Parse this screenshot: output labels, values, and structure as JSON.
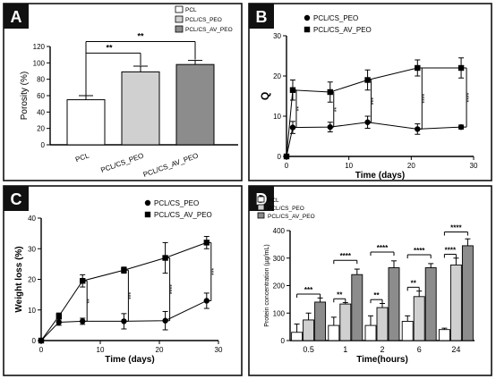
{
  "chart_data": [
    {
      "panel": "A",
      "type": "bar",
      "ylabel": "Porosity (%)",
      "ylim": [
        0,
        120
      ],
      "yticks": [
        0,
        20,
        40,
        60,
        80,
        100,
        120
      ],
      "categories": [
        "PCL",
        "PCL/CS_PEO",
        "PCL/CS_AV_PEO"
      ],
      "values": [
        55,
        89,
        98
      ],
      "errors": [
        5,
        7,
        5
      ],
      "legend": [
        "PCL",
        "PCL/CS_PEO",
        "PCL/CS_AV_PEO"
      ],
      "legend_position": "top-right",
      "colors": [
        "#ffffff",
        "#d0d0d0",
        "#8c8c8c"
      ],
      "significance": [
        {
          "from": 0,
          "to": 1,
          "label": "**"
        },
        {
          "from": 0,
          "to": 2,
          "label": "**"
        }
      ]
    },
    {
      "panel": "B",
      "type": "line",
      "ylabel": "Q",
      "xlabel": "Time (days)",
      "xlim": [
        0,
        30
      ],
      "ylim": [
        0,
        30
      ],
      "xticks": [
        0,
        10,
        20,
        30
      ],
      "yticks": [
        0,
        10,
        20,
        30
      ],
      "legend_position": "top-right",
      "series": [
        {
          "name": "PCL/CS_PEO",
          "marker": "circle",
          "x": [
            0,
            1,
            7,
            13,
            21,
            28
          ],
          "y": [
            0,
            7.2,
            7.3,
            8.5,
            6.8,
            7.3
          ],
          "err": [
            0,
            1.5,
            1.2,
            1.5,
            1.3,
            0.5
          ]
        },
        {
          "name": "PCL/CS_AV_PEO",
          "marker": "square",
          "x": [
            0,
            1,
            7,
            13,
            21,
            28
          ],
          "y": [
            0,
            16.5,
            16,
            19,
            22,
            22
          ],
          "err": [
            0,
            2.5,
            2.5,
            2.5,
            2,
            2.5
          ]
        }
      ],
      "significance": [
        {
          "x": 1,
          "label": "**"
        },
        {
          "x": 7,
          "label": "**"
        },
        {
          "x": 13,
          "label": "***"
        },
        {
          "x": 21,
          "label": "****"
        },
        {
          "x": 28,
          "label": "****"
        }
      ]
    },
    {
      "panel": "C",
      "type": "line",
      "ylabel": "Weight loss (%)",
      "xlabel": "Time (days)",
      "xlim": [
        0,
        30
      ],
      "ylim": [
        0,
        40
      ],
      "xticks": [
        0,
        10,
        20,
        30
      ],
      "yticks": [
        0,
        10,
        20,
        30,
        40
      ],
      "legend_position": "top-right",
      "series": [
        {
          "name": "PCL/CS_PEO",
          "marker": "circle",
          "x": [
            0,
            3,
            7,
            14,
            21,
            28
          ],
          "y": [
            0,
            6,
            6.3,
            6.3,
            6.5,
            13
          ],
          "err": [
            0,
            1,
            1,
            2.5,
            3,
            2.5
          ]
        },
        {
          "name": "PCL/CS_AV_PEO",
          "marker": "square",
          "x": [
            0,
            3,
            7,
            14,
            21,
            28
          ],
          "y": [
            0,
            8,
            19.5,
            23,
            27,
            32
          ],
          "err": [
            0,
            1,
            2,
            1,
            5,
            2
          ]
        }
      ],
      "significance": [
        {
          "x": 7,
          "label": "**"
        },
        {
          "x": 14,
          "label": "***"
        },
        {
          "x": 21,
          "label": "****"
        },
        {
          "x": 28,
          "label": "***"
        }
      ]
    },
    {
      "panel": "D",
      "type": "bar",
      "ylabel": "Protein concentration (µg/mL)",
      "xlabel": "Time(hours)",
      "ylim": [
        0,
        400
      ],
      "yticks": [
        0,
        100,
        200,
        300,
        400
      ],
      "categories": [
        "0.5",
        "1",
        "2",
        "6",
        "24"
      ],
      "legend_position": "top-left",
      "series": [
        {
          "name": "PCL",
          "color": "#ffffff",
          "values": [
            30,
            55,
            55,
            70,
            40
          ],
          "err": [
            30,
            30,
            35,
            20,
            5
          ]
        },
        {
          "name": "PCL/CS_PEO",
          "color": "#d0d0d0",
          "values": [
            75,
            133,
            120,
            160,
            275
          ],
          "err": [
            25,
            5,
            15,
            20,
            25
          ]
        },
        {
          "name": "PCL/CS_AV_PEO",
          "color": "#8c8c8c",
          "values": [
            140,
            240,
            265,
            265,
            345
          ],
          "err": [
            15,
            20,
            25,
            15,
            25
          ]
        }
      ],
      "significance": [
        {
          "cat": 0,
          "from": 0,
          "to": 2,
          "label": "***"
        },
        {
          "cat": 1,
          "from": 0,
          "to": 1,
          "label": "**"
        },
        {
          "cat": 1,
          "from": 0,
          "to": 2,
          "label": "****"
        },
        {
          "cat": 2,
          "from": 0,
          "to": 1,
          "label": "**"
        },
        {
          "cat": 2,
          "from": 0,
          "to": 2,
          "label": "****"
        },
        {
          "cat": 3,
          "from": 0,
          "to": 1,
          "label": "**"
        },
        {
          "cat": 3,
          "from": 0,
          "to": 2,
          "label": "****"
        },
        {
          "cat": 4,
          "from": 0,
          "to": 1,
          "label": "****"
        },
        {
          "cat": 4,
          "from": 0,
          "to": 2,
          "label": "****"
        }
      ]
    }
  ]
}
